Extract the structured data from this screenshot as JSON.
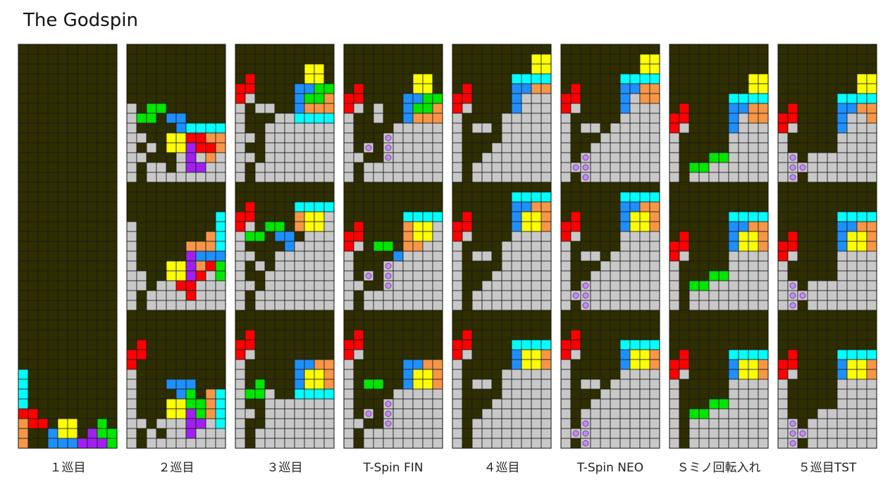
{
  "title": "The Godspin",
  "labels": [
    "１巡目",
    "２巡目",
    "３巡目",
    "T-Spin FIN",
    "４巡目",
    "T-Spin NEO",
    "Ｓミノ回転入れ",
    "５巡目TST"
  ]
}
